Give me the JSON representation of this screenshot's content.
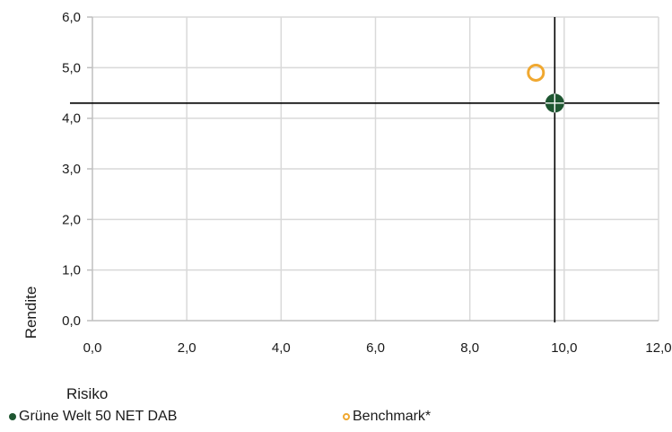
{
  "chart_data": {
    "type": "scatter",
    "title": "",
    "xlabel": "Risiko",
    "ylabel": "Rendite",
    "xlim": [
      0,
      12
    ],
    "ylim": [
      0,
      6
    ],
    "xticks": [
      0,
      2,
      4,
      6,
      8,
      10,
      12
    ],
    "yticks": [
      0,
      1,
      2,
      3,
      4,
      5,
      6
    ],
    "xtick_labels": [
      "0,0",
      "2,0",
      "4,0",
      "6,0",
      "8,0",
      "10,0",
      "12,0"
    ],
    "ytick_labels": [
      "0,0",
      "1,0",
      "2,0",
      "3,0",
      "4,0",
      "5,0",
      "6,0"
    ],
    "grid": true,
    "legend_position": "bottom",
    "series": [
      {
        "name": "Grüne Welt 50 NET DAB",
        "marker": "filled-circle-with-crosshair",
        "color": "#1e5631",
        "points": [
          {
            "x": 9.8,
            "y": 4.3
          }
        ]
      },
      {
        "name": "Benchmark*",
        "marker": "hollow-circle",
        "color": "#f0a830",
        "points": [
          {
            "x": 9.4,
            "y": 4.9
          }
        ]
      }
    ],
    "reference_lines": [
      {
        "orientation": "horizontal",
        "y": 4.3,
        "color": "#000000"
      },
      {
        "orientation": "vertical",
        "x": 9.8,
        "color": "#000000"
      }
    ]
  }
}
